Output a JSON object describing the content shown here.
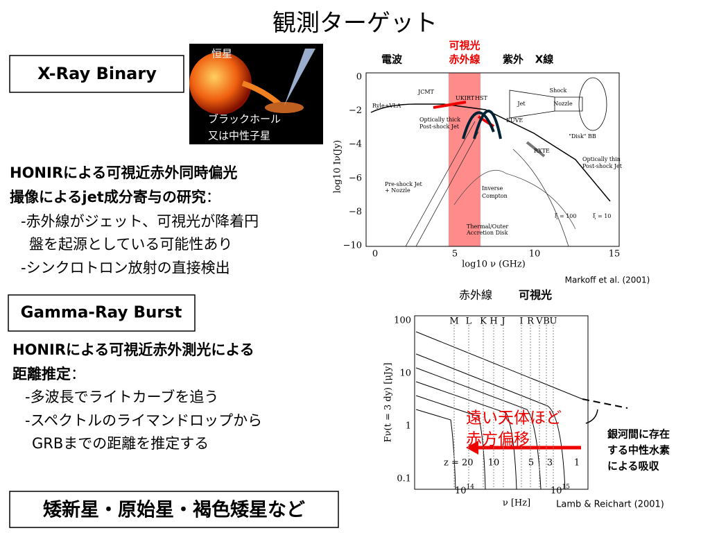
{
  "title": "観測ターゲット",
  "xray": {
    "label": "X-Ray Binary",
    "image": {
      "star": "恒星",
      "compact": [
        "ブラックホール",
        "又は中性子星"
      ]
    },
    "heading": [
      "HONIRによる可視近赤外同時偏光",
      "撮像によるjet成分寄与の研究"
    ],
    "colon": "：",
    "bullets": [
      "-赤外線がジェット、可視光が降着円",
      "盤を起源としている可能性あり",
      "-シンクロトロン放射の直接検出"
    ]
  },
  "figure1": {
    "bands": {
      "radio": "電波",
      "optical": "可視光",
      "infrared": "赤外線",
      "uv": "紫外",
      "xray": "X線"
    },
    "xlabel": "log10 ν (GHz)",
    "ylabel": "log10 Iν(Jy)",
    "xticks": [
      "0",
      "5",
      "10",
      "15"
    ],
    "yticks": [
      "0",
      "−2",
      "−4",
      "−6",
      "−8",
      "−10"
    ],
    "annotations": [
      "Ryle+VLA",
      "JCMT",
      "UKIRT",
      "HST",
      "EUVE",
      "RXTE",
      "Optically thick",
      "Post-shock Jet",
      "Optically thin",
      "Post-shock Jet",
      "Pre-shock Jet",
      "+ Nozzle",
      "Inverse",
      "Compton",
      "Thermal/Outer",
      "Accretion Disk",
      "ξ = 100",
      "ξ = 10",
      "Shock",
      "Jet",
      "Nozzle",
      "\"Disk\" BB"
    ],
    "citation": "Markoff et al. (2001)"
  },
  "grb": {
    "label": "Gamma-Ray Burst",
    "heading": [
      "HONIRによる可視近赤外測光による",
      "距離推定"
    ],
    "colon": "：",
    "bullets": [
      "-多波長でライトカーブを追う",
      "-スペクトルのライマンドロップから",
      "GRBまでの距離を推定する"
    ]
  },
  "figure2": {
    "bands": {
      "infrared": "赤外線",
      "optical": "可視光"
    },
    "filters": [
      "M",
      "L",
      "K",
      "H",
      "J",
      "I",
      "R",
      "V",
      "B",
      "U"
    ],
    "yticks": [
      "100",
      "10",
      "1",
      "0.1"
    ],
    "xticks": [
      {
        "base": "10",
        "exp": "14"
      },
      {
        "base": "10",
        "exp": "15"
      }
    ],
    "xlabel": "ν [Hz]",
    "ylabel": "Fν(t = 3 dy) [μJy]",
    "redshifts": [
      "z = 20",
      "10",
      "5",
      "3",
      "1"
    ],
    "arrow_label": [
      "遠い天体ほど",
      "赤方偏移"
    ],
    "absorption": [
      "銀河間に存在",
      "する中性水素",
      "による吸収"
    ],
    "citation": "Lamb & Reichart (2001)"
  },
  "other": "矮新星・原始星・褐色矮星など"
}
